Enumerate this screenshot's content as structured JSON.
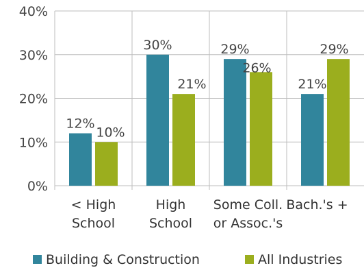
{
  "chart_data": {
    "type": "bar",
    "categories": [
      [
        "< High",
        "School"
      ],
      [
        "High",
        "School"
      ],
      [
        "Some Coll.",
        "or Assoc.'s"
      ],
      [
        "Bach.'s +"
      ]
    ],
    "series": [
      {
        "name": "Building & Construction",
        "color": "#31859C",
        "values": [
          12,
          30,
          29,
          21
        ],
        "labels": [
          "12%",
          "30%",
          "29%",
          "21%"
        ]
      },
      {
        "name": "All Industries",
        "color": "#9BAE1E",
        "values": [
          10,
          21,
          26,
          29
        ],
        "labels": [
          "10%",
          "21%",
          "26%",
          "29%"
        ]
      }
    ],
    "yticks": [
      "0%",
      "10%",
      "20%",
      "30%",
      "40%"
    ],
    "ylim": [
      0,
      40
    ],
    "grid": true,
    "legend": "bottom"
  }
}
